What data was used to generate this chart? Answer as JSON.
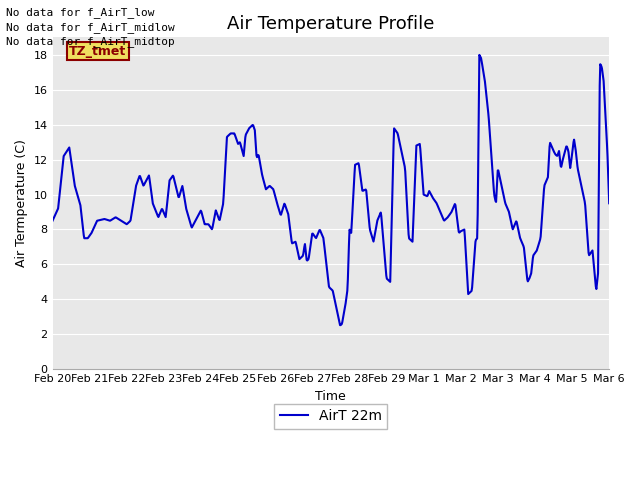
{
  "title": "Air Temperature Profile",
  "xlabel": "Time",
  "ylabel": "Air Termperature (C)",
  "line_color": "#0000cc",
  "line_width": 1.5,
  "legend_label": "AirT 22m",
  "ylim": [
    0,
    19
  ],
  "yticks": [
    0,
    2,
    4,
    6,
    8,
    10,
    12,
    14,
    16,
    18
  ],
  "background_color": "#ffffff",
  "plot_bg_color": "#e8e8e8",
  "no_data_texts": [
    "No data for f_AirT_low",
    "No data for f_AirT_midlow",
    "No data for f_AirT_midtop"
  ],
  "tz_tmet_label": "TZ_tmet",
  "x_tick_labels": [
    "Feb 20",
    "Feb 21",
    "Feb 22",
    "Feb 23",
    "Feb 24",
    "Feb 25",
    "Feb 26",
    "Feb 27",
    "Feb 28",
    "Feb 29",
    "Mar 1",
    "Mar 2",
    "Mar 3",
    "Mar 4",
    "Mar 5",
    "Mar 6"
  ],
  "title_fontsize": 13,
  "axis_fontsize": 9,
  "tick_fontsize": 8,
  "legend_fontsize": 10,
  "key_points": [
    [
      0.0,
      8.5
    ],
    [
      0.15,
      9.2
    ],
    [
      0.3,
      12.2
    ],
    [
      0.45,
      12.7
    ],
    [
      0.6,
      10.5
    ],
    [
      0.75,
      9.4
    ],
    [
      0.85,
      7.5
    ],
    [
      0.95,
      7.5
    ],
    [
      1.05,
      7.8
    ],
    [
      1.2,
      8.5
    ],
    [
      1.4,
      8.6
    ],
    [
      1.55,
      8.5
    ],
    [
      1.7,
      8.7
    ],
    [
      2.0,
      8.3
    ],
    [
      2.1,
      8.5
    ],
    [
      2.25,
      10.5
    ],
    [
      2.35,
      11.1
    ],
    [
      2.45,
      10.5
    ],
    [
      2.5,
      10.7
    ],
    [
      2.6,
      11.1
    ],
    [
      2.7,
      9.5
    ],
    [
      2.85,
      8.7
    ],
    [
      2.95,
      9.2
    ],
    [
      3.05,
      8.7
    ],
    [
      3.15,
      10.8
    ],
    [
      3.25,
      11.1
    ],
    [
      3.4,
      9.8
    ],
    [
      3.5,
      10.5
    ],
    [
      3.6,
      9.2
    ],
    [
      3.75,
      8.1
    ],
    [
      3.85,
      8.5
    ],
    [
      4.0,
      9.1
    ],
    [
      4.1,
      8.3
    ],
    [
      4.2,
      8.3
    ],
    [
      4.3,
      8.0
    ],
    [
      4.4,
      9.1
    ],
    [
      4.5,
      8.5
    ],
    [
      4.6,
      9.5
    ],
    [
      4.7,
      13.3
    ],
    [
      4.8,
      13.5
    ],
    [
      4.9,
      13.5
    ],
    [
      5.0,
      12.9
    ],
    [
      5.05,
      13.0
    ],
    [
      5.15,
      12.2
    ],
    [
      5.2,
      13.4
    ],
    [
      5.3,
      13.8
    ],
    [
      5.4,
      14.0
    ],
    [
      5.45,
      13.7
    ],
    [
      5.5,
      12.1
    ],
    [
      5.55,
      12.3
    ],
    [
      5.65,
      11.1
    ],
    [
      5.75,
      10.3
    ],
    [
      5.85,
      10.5
    ],
    [
      5.95,
      10.3
    ],
    [
      6.05,
      9.5
    ],
    [
      6.15,
      8.8
    ],
    [
      6.25,
      9.5
    ],
    [
      6.35,
      8.9
    ],
    [
      6.45,
      7.2
    ],
    [
      6.55,
      7.3
    ],
    [
      6.65,
      6.3
    ],
    [
      6.75,
      6.5
    ],
    [
      6.8,
      7.2
    ],
    [
      6.85,
      6.2
    ],
    [
      6.9,
      6.3
    ],
    [
      7.0,
      7.8
    ],
    [
      7.1,
      7.5
    ],
    [
      7.2,
      8.0
    ],
    [
      7.3,
      7.5
    ],
    [
      7.45,
      4.7
    ],
    [
      7.55,
      4.5
    ],
    [
      7.65,
      3.5
    ],
    [
      7.75,
      2.5
    ],
    [
      7.8,
      2.6
    ],
    [
      7.9,
      3.8
    ],
    [
      7.95,
      4.6
    ],
    [
      8.0,
      8.0
    ],
    [
      8.05,
      7.8
    ],
    [
      8.15,
      11.7
    ],
    [
      8.25,
      11.8
    ],
    [
      8.35,
      10.2
    ],
    [
      8.45,
      10.3
    ],
    [
      8.55,
      8.0
    ],
    [
      8.65,
      7.3
    ],
    [
      8.75,
      8.5
    ],
    [
      8.85,
      9.0
    ],
    [
      9.0,
      5.2
    ],
    [
      9.1,
      5.0
    ],
    [
      9.2,
      13.8
    ],
    [
      9.3,
      13.5
    ],
    [
      9.4,
      12.5
    ],
    [
      9.5,
      11.5
    ],
    [
      9.6,
      7.5
    ],
    [
      9.7,
      7.3
    ],
    [
      9.8,
      12.8
    ],
    [
      9.9,
      12.9
    ],
    [
      10.0,
      10.0
    ],
    [
      10.1,
      9.9
    ],
    [
      10.15,
      10.2
    ],
    [
      10.25,
      9.8
    ],
    [
      10.35,
      9.5
    ],
    [
      10.45,
      9.0
    ],
    [
      10.55,
      8.5
    ],
    [
      10.65,
      8.7
    ],
    [
      10.75,
      9.0
    ],
    [
      10.85,
      9.5
    ],
    [
      10.95,
      7.8
    ],
    [
      11.0,
      7.9
    ],
    [
      11.1,
      8.0
    ],
    [
      11.2,
      4.3
    ],
    [
      11.3,
      4.5
    ],
    [
      11.4,
      7.4
    ],
    [
      11.45,
      7.5
    ],
    [
      11.5,
      18.0
    ],
    [
      11.55,
      17.8
    ],
    [
      11.65,
      16.5
    ],
    [
      11.75,
      14.5
    ],
    [
      11.85,
      11.5
    ],
    [
      11.9,
      10.0
    ],
    [
      11.95,
      9.5
    ],
    [
      12.0,
      11.5
    ],
    [
      12.1,
      10.5
    ],
    [
      12.2,
      9.5
    ],
    [
      12.3,
      9.0
    ],
    [
      12.4,
      8.0
    ],
    [
      12.5,
      8.5
    ],
    [
      12.6,
      7.5
    ],
    [
      12.7,
      7.0
    ],
    [
      12.8,
      5.0
    ],
    [
      12.85,
      5.2
    ],
    [
      12.9,
      5.5
    ],
    [
      12.95,
      6.5
    ],
    [
      13.05,
      6.8
    ],
    [
      13.15,
      7.5
    ],
    [
      13.25,
      10.5
    ],
    [
      13.35,
      11.0
    ],
    [
      13.4,
      13.0
    ],
    [
      13.5,
      12.5
    ],
    [
      13.55,
      12.3
    ],
    [
      13.6,
      12.2
    ],
    [
      13.65,
      12.5
    ],
    [
      13.7,
      11.5
    ],
    [
      13.75,
      12.0
    ],
    [
      13.85,
      12.8
    ],
    [
      13.9,
      12.5
    ],
    [
      13.95,
      11.5
    ],
    [
      14.0,
      12.3
    ],
    [
      14.05,
      13.2
    ],
    [
      14.1,
      12.5
    ],
    [
      14.15,
      11.5
    ],
    [
      14.25,
      10.5
    ],
    [
      14.35,
      9.5
    ],
    [
      14.45,
      6.5
    ],
    [
      14.55,
      6.8
    ],
    [
      14.65,
      4.5
    ],
    [
      14.7,
      5.5
    ],
    [
      14.75,
      17.5
    ],
    [
      14.8,
      17.3
    ],
    [
      14.85,
      16.5
    ],
    [
      14.9,
      14.5
    ],
    [
      14.95,
      12.5
    ],
    [
      15.0,
      9.5
    ]
  ]
}
